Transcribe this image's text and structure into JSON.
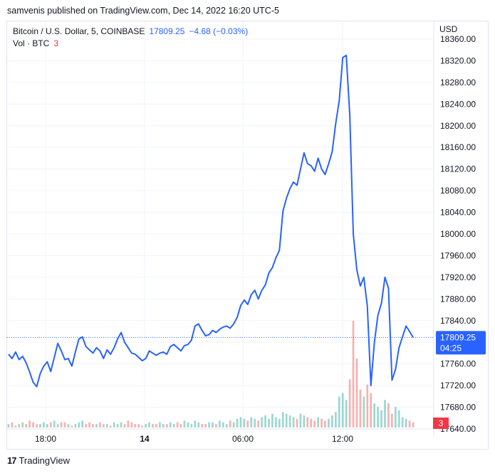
{
  "header": {
    "published": "samvenis published on TradingView.com, Dec 14, 2022 16:20 UTC-5"
  },
  "legend": {
    "symbol": "Bitcoin / U.S. Dollar, 5, COINBASE",
    "price": "17809.25",
    "change": "−4.68 (−0.03%)",
    "vol_label": "Vol · BTC",
    "vol_value": "3"
  },
  "footer": {
    "brand": "TradingView",
    "logo": "17"
  },
  "colors": {
    "line": "#2962ff",
    "up_vol": "#26a69a",
    "down_vol": "#ef5350",
    "grid": "#f0f3fa",
    "tag": "#2962ff",
    "vol_tag": "#f23645"
  },
  "chart_data": {
    "type": "line",
    "currency": "USD",
    "ylim": [
      17640,
      18360
    ],
    "y_ticks": [
      17640,
      17680,
      17720,
      17760,
      17800,
      17840,
      17880,
      17920,
      17960,
      18000,
      18040,
      18080,
      18120,
      18160,
      18200,
      18240,
      18280,
      18320,
      18360
    ],
    "y_tick_labels": [
      "17640.00",
      "17680.00",
      "17720.00",
      "17760.00",
      "17800.00",
      "17840.00",
      "17880.00",
      "17920.00",
      "17960.00",
      "18000.00",
      "18040.00",
      "18080.00",
      "18120.00",
      "18160.00",
      "18200.00",
      "18240.00",
      "18280.00",
      "18320.00",
      "18360.00"
    ],
    "x_ticks": [
      "18:00",
      "14",
      "06:00",
      "12:00"
    ],
    "last_price_label": "17809.25",
    "countdown": "04:25",
    "volume_last": "3",
    "series": [
      {
        "values": [
          17778,
          17770,
          17782,
          17768,
          17774,
          17762,
          17745,
          17726,
          17718,
          17742,
          17756,
          17764,
          17746,
          17772,
          17798,
          17784,
          17768,
          17770,
          17756,
          17782,
          17806,
          17810,
          17792,
          17786,
          17780,
          17790,
          17784,
          17770,
          17786,
          17778,
          17790,
          17806,
          17818,
          17800,
          17790,
          17780,
          17778,
          17772,
          17766,
          17770,
          17784,
          17780,
          17776,
          17780,
          17782,
          17778,
          17792,
          17796,
          17790,
          17784,
          17794,
          17796,
          17804,
          17830,
          17834,
          17822,
          17812,
          17814,
          17822,
          17818,
          17824,
          17828,
          17830,
          17826,
          17834,
          17846,
          17868,
          17878,
          17870,
          17888,
          17896,
          17880,
          17896,
          17906,
          17928,
          17938,
          17956,
          17970,
          18042,
          18066,
          18084,
          18096,
          18090,
          18120,
          18150,
          18130,
          18126,
          18116,
          18140,
          18120,
          18110,
          18130,
          18152,
          18204,
          18246,
          18326,
          18330,
          18220,
          18000,
          17934,
          17904,
          17920,
          17866,
          17720,
          17800,
          17850,
          17872,
          17920,
          17900,
          17730,
          17750,
          17790,
          17810,
          17830,
          17820,
          17809
        ]
      }
    ],
    "volume": [
      2,
      3,
      1,
      2,
      3,
      2,
      4,
      3,
      2,
      2,
      3,
      2,
      3,
      4,
      2,
      3,
      3,
      2,
      1,
      2,
      3,
      4,
      2,
      3,
      2,
      2,
      3,
      2,
      2,
      1,
      3,
      2,
      3,
      2,
      4,
      3,
      2,
      2,
      1,
      2,
      3,
      2,
      2,
      3,
      2,
      2,
      3,
      2,
      3,
      2,
      4,
      3,
      2,
      4,
      3,
      2,
      2,
      3,
      3,
      2,
      4,
      3,
      2,
      4,
      3,
      5,
      6,
      5,
      4,
      6,
      5,
      4,
      6,
      7,
      5,
      8,
      6,
      5,
      9,
      8,
      7,
      6,
      5,
      8,
      7,
      6,
      5,
      4,
      6,
      5,
      4,
      5,
      7,
      9,
      18,
      20,
      16,
      28,
      62,
      40,
      22,
      18,
      25,
      20,
      14,
      12,
      10,
      16,
      14,
      8,
      12,
      10,
      6,
      5,
      4,
      3
    ]
  }
}
